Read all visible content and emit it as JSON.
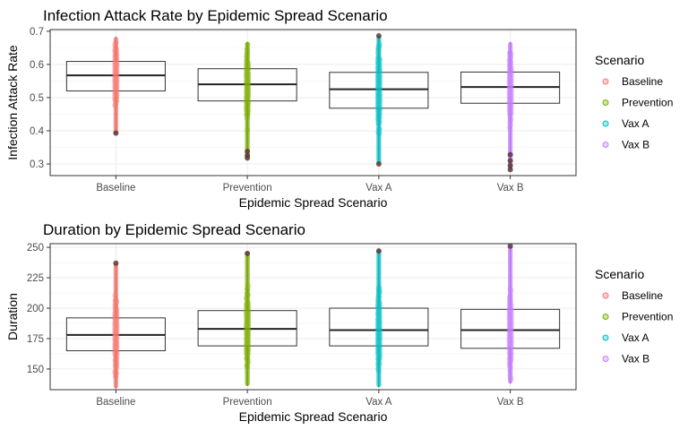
{
  "chart_data": [
    {
      "type": "box",
      "title": "Infection Attack Rate by Epidemic Spread Scenario",
      "xlabel": "Epidemic Spread Scenario",
      "ylabel": "Infection Attack Rate",
      "categories": [
        "Baseline",
        "Prevention",
        "Vax A",
        "Vax B"
      ],
      "ylim": [
        0.265,
        0.705
      ],
      "yticks": [
        0.3,
        0.4,
        0.5,
        0.6,
        0.7
      ],
      "ytick_labels": [
        "0.3",
        "0.4",
        "0.5",
        "0.6",
        "0.7"
      ],
      "grid": true,
      "series": [
        {
          "name": "Baseline",
          "q1": 0.52,
          "median": 0.567,
          "q3": 0.609,
          "min": 0.39,
          "max": 0.683,
          "outliers": [
            0.393
          ]
        },
        {
          "name": "Prevention",
          "q1": 0.49,
          "median": 0.54,
          "q3": 0.587,
          "min": 0.318,
          "max": 0.668,
          "outliers": [
            0.318,
            0.325,
            0.338
          ]
        },
        {
          "name": "Vax A",
          "q1": 0.468,
          "median": 0.525,
          "q3": 0.576,
          "min": 0.3,
          "max": 0.686,
          "outliers": [
            0.3,
            0.686
          ]
        },
        {
          "name": "Vax B",
          "q1": 0.483,
          "median": 0.532,
          "q3": 0.577,
          "min": 0.283,
          "max": 0.668,
          "outliers": [
            0.283,
            0.295,
            0.31,
            0.328
          ]
        }
      ],
      "legend": {
        "title": "Scenario",
        "position": "right",
        "items": [
          "Baseline",
          "Prevention",
          "Vax A",
          "Vax B"
        ]
      }
    },
    {
      "type": "box",
      "title": "Duration by Epidemic Spread Scenario",
      "xlabel": "Epidemic Spread Scenario",
      "ylabel": "Duration",
      "categories": [
        "Baseline",
        "Prevention",
        "Vax A",
        "Vax B"
      ],
      "ylim": [
        133,
        253
      ],
      "yticks": [
        150,
        175,
        200,
        225,
        250
      ],
      "ytick_labels": [
        "150",
        "175",
        "200",
        "225",
        "250"
      ],
      "grid": true,
      "series": [
        {
          "name": "Baseline",
          "q1": 165,
          "median": 178,
          "q3": 192,
          "min": 134,
          "max": 237,
          "outliers": [
            237
          ]
        },
        {
          "name": "Prevention",
          "q1": 169,
          "median": 183,
          "q3": 198,
          "min": 136,
          "max": 246,
          "outliers": [
            245
          ]
        },
        {
          "name": "Vax A",
          "q1": 169,
          "median": 182,
          "q3": 200,
          "min": 135,
          "max": 248,
          "outliers": [
            247
          ]
        },
        {
          "name": "Vax B",
          "q1": 167,
          "median": 182,
          "q3": 199,
          "min": 138,
          "max": 251,
          "outliers": [
            251
          ]
        }
      ],
      "legend": {
        "title": "Scenario",
        "position": "right",
        "items": [
          "Baseline",
          "Prevention",
          "Vax A",
          "Vax B"
        ]
      }
    }
  ],
  "colors": {
    "Baseline": "#F8766D",
    "Prevention": "#7CAE00",
    "Vax A": "#00BFC4",
    "Vax B": "#C77CFF",
    "outlier": "#5b3a3a",
    "grid": "#ebebeb",
    "panel_border": "#333333"
  }
}
